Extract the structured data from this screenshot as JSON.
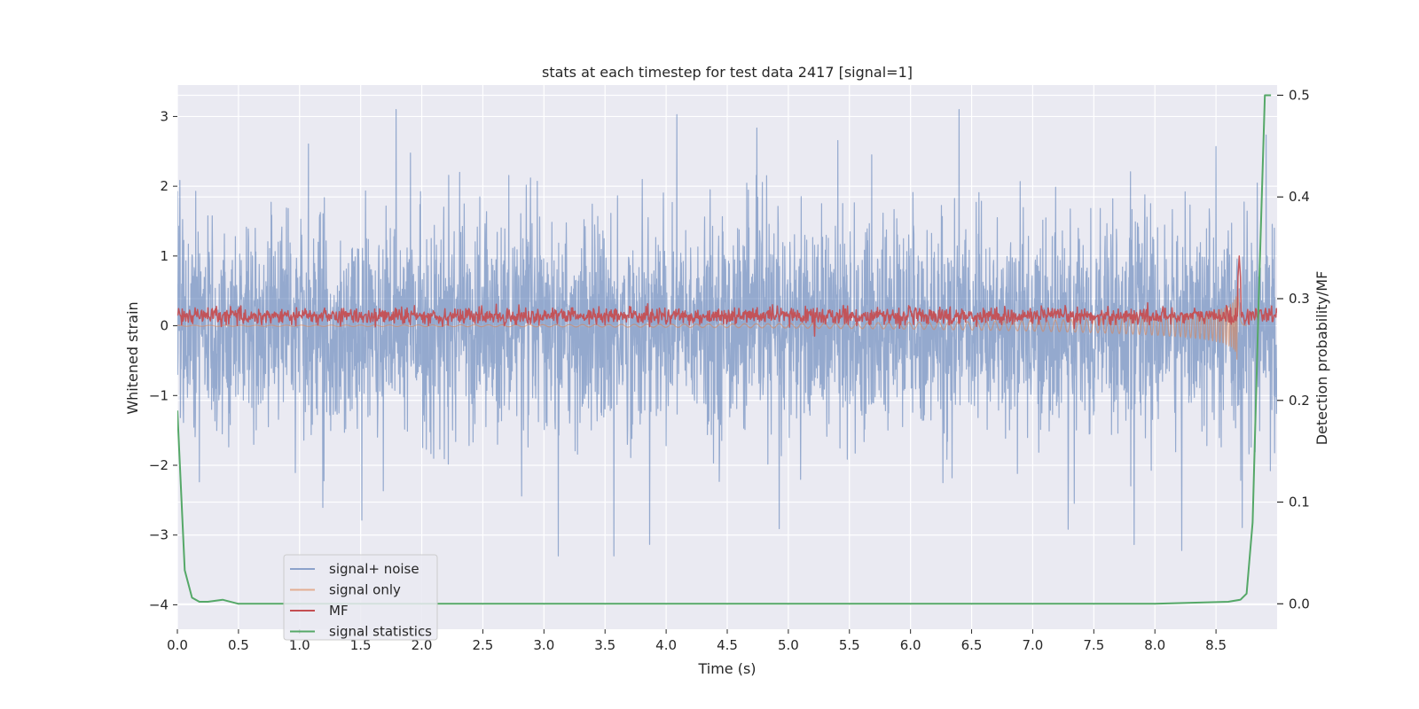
{
  "chart_data": {
    "type": "line",
    "title": "stats at each timestep for test data 2417 [signal=1]",
    "xlabel": "Time (s)",
    "ylabel": "Whitened strain",
    "ylabel_right": "Detection probability/MF",
    "xlim": [
      0.0,
      9.0
    ],
    "ylim": [
      -4.35,
      3.45
    ],
    "ylim_right": [
      -0.025,
      0.51
    ],
    "x_ticks": [
      0.0,
      0.5,
      1.0,
      1.5,
      2.0,
      2.5,
      3.0,
      3.5,
      4.0,
      4.5,
      5.0,
      5.5,
      6.0,
      6.5,
      7.0,
      7.5,
      8.0,
      8.5
    ],
    "x_tick_labels": [
      "0.0",
      "0.5",
      "1.0",
      "1.5",
      "2.0",
      "2.5",
      "3.0",
      "3.5",
      "4.0",
      "4.5",
      "5.0",
      "5.5",
      "6.0",
      "6.5",
      "7.0",
      "7.5",
      "8.0",
      "8.5"
    ],
    "y_ticks": [
      -4,
      -3,
      -2,
      -1,
      0,
      1,
      2,
      3
    ],
    "y_tick_labels": [
      "−4",
      "−3",
      "−2",
      "−1",
      "0",
      "1",
      "2",
      "3"
    ],
    "y_ticks_right": [
      0.0,
      0.1,
      0.2,
      0.3,
      0.4,
      0.5
    ],
    "y_tick_labels_right": [
      "0.0",
      "0.1",
      "0.2",
      "0.3",
      "0.4",
      "0.5"
    ],
    "grid": true,
    "legend_position": "lower-left",
    "series": [
      {
        "name": "signal+ noise",
        "color": "#4c72b0",
        "axis": "left",
        "generated": "noise",
        "sample_rate": 400,
        "std": 0.95,
        "x_range": [
          0.0,
          9.0
        ]
      },
      {
        "name": "signal only",
        "color": "#dd8452",
        "axis": "left",
        "generated": "chirp",
        "merger_time": 8.68,
        "peak_amplitude": 0.62,
        "x_range": [
          0.0,
          8.75
        ]
      },
      {
        "name": "MF",
        "color": "#c44e52",
        "axis": "left",
        "generated": "band",
        "mean": 0.14,
        "std": 0.06,
        "spike": {
          "x": 8.69,
          "y": 1.0
        },
        "x_range": [
          0.0,
          9.0
        ]
      },
      {
        "name": "signal statistics",
        "color": "#55a868",
        "axis": "right",
        "x": [
          0.0,
          0.06,
          0.12,
          0.18,
          0.25,
          0.37,
          0.5,
          1.0,
          2.0,
          3.0,
          4.0,
          5.0,
          6.0,
          7.0,
          8.0,
          8.6,
          8.7,
          8.75,
          8.8,
          8.85,
          8.9,
          8.95
        ],
        "y": [
          0.19,
          0.033,
          0.006,
          0.002,
          0.002,
          0.004,
          0.0,
          0.0,
          0.0,
          0.0,
          0.0,
          0.0,
          0.0,
          0.0,
          0.0,
          0.002,
          0.004,
          0.01,
          0.08,
          0.3,
          0.5,
          0.5
        ]
      }
    ]
  }
}
